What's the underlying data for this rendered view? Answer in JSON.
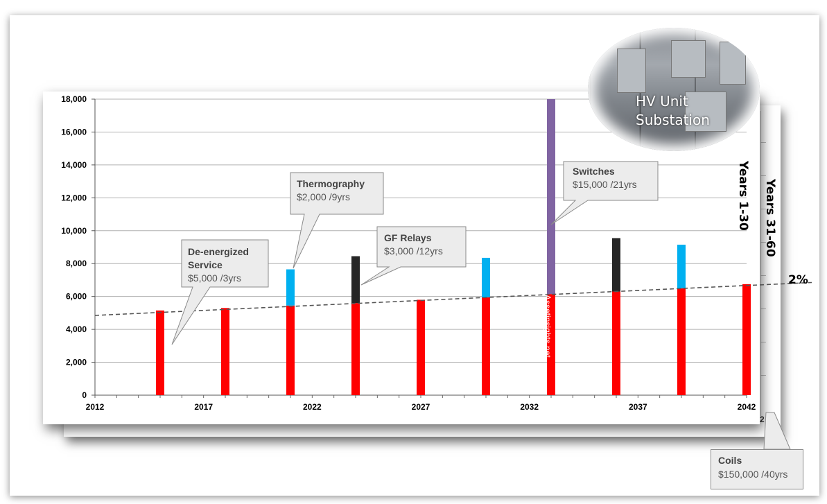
{
  "chart_data": {
    "type": "bar",
    "ylim": [
      0,
      18000
    ],
    "xlim": [
      2012,
      2042
    ],
    "yticks": [
      "18,000",
      "16,000",
      "14,000",
      "12,000",
      "10,000",
      "8,000",
      "6,000",
      "4,000",
      "2,000",
      "0"
    ],
    "ytick_values": [
      18000,
      16000,
      14000,
      12000,
      10000,
      8000,
      6000,
      4000,
      2000,
      0
    ],
    "xticks": [
      "2012",
      "2017",
      "2022",
      "2027",
      "2032",
      "2037",
      "2042"
    ],
    "xtick_values": [
      2012,
      2017,
      2022,
      2027,
      2032,
      2037,
      2042
    ],
    "grid": true,
    "bars": [
      {
        "year": 2015,
        "segments": [
          {
            "color": "#ff0000",
            "value": 5150
          }
        ]
      },
      {
        "year": 2018,
        "segments": [
          {
            "color": "#ff0000",
            "value": 5300
          }
        ]
      },
      {
        "year": 2021,
        "segments": [
          {
            "color": "#ff0000",
            "value": 5450
          },
          {
            "color": "#00b0f0",
            "value": 2200
          }
        ]
      },
      {
        "year": 2024,
        "segments": [
          {
            "color": "#ff0000",
            "value": 5600
          },
          {
            "color": "#262626",
            "value": 2850
          }
        ]
      },
      {
        "year": 2027,
        "segments": [
          {
            "color": "#ff0000",
            "value": 5800
          }
        ]
      },
      {
        "year": 2030,
        "segments": [
          {
            "color": "#ff0000",
            "value": 5950
          },
          {
            "color": "#00b0f0",
            "value": 2400
          }
        ]
      },
      {
        "year": 2033,
        "segments": [
          {
            "color": "#ff0000",
            "value": 6150
          },
          {
            "color": "#8064a2",
            "value": 11850
          }
        ]
      },
      {
        "year": 2036,
        "segments": [
          {
            "color": "#ff0000",
            "value": 6300
          },
          {
            "color": "#262626",
            "value": 3250
          }
        ]
      },
      {
        "year": 2039,
        "segments": [
          {
            "color": "#ff0000",
            "value": 6500
          },
          {
            "color": "#00b0f0",
            "value": 2650
          }
        ]
      },
      {
        "year": 2042,
        "segments": [
          {
            "color": "#ff0000",
            "value": 6750
          }
        ]
      }
    ],
    "trendline": {
      "label": "2%",
      "start": 4850,
      "end": 6850,
      "x_start": 2012,
      "x_end": 2045
    }
  },
  "callouts": {
    "deenergized": {
      "title_line1": "De-energized",
      "title_line2": "Service",
      "sub": "$5,000 /3yrs"
    },
    "thermography": {
      "title": "Thermography",
      "sub": "$2,000 /9yrs"
    },
    "gfrelays": {
      "title": "GF Relays",
      "sub": "$3,000 /12yrs"
    },
    "switches": {
      "title": "Switches",
      "sub": "$15,000 /21yrs"
    },
    "coils": {
      "title": "Coils",
      "sub": "$150,000 /40yrs"
    }
  },
  "photo": {
    "line1": "HV Unit",
    "line2": "Substation"
  },
  "labels": {
    "years_front": "Years 1-30",
    "years_back": "Years 31-60",
    "watermark": "Assetinsights.net",
    "back_tick": "2"
  }
}
